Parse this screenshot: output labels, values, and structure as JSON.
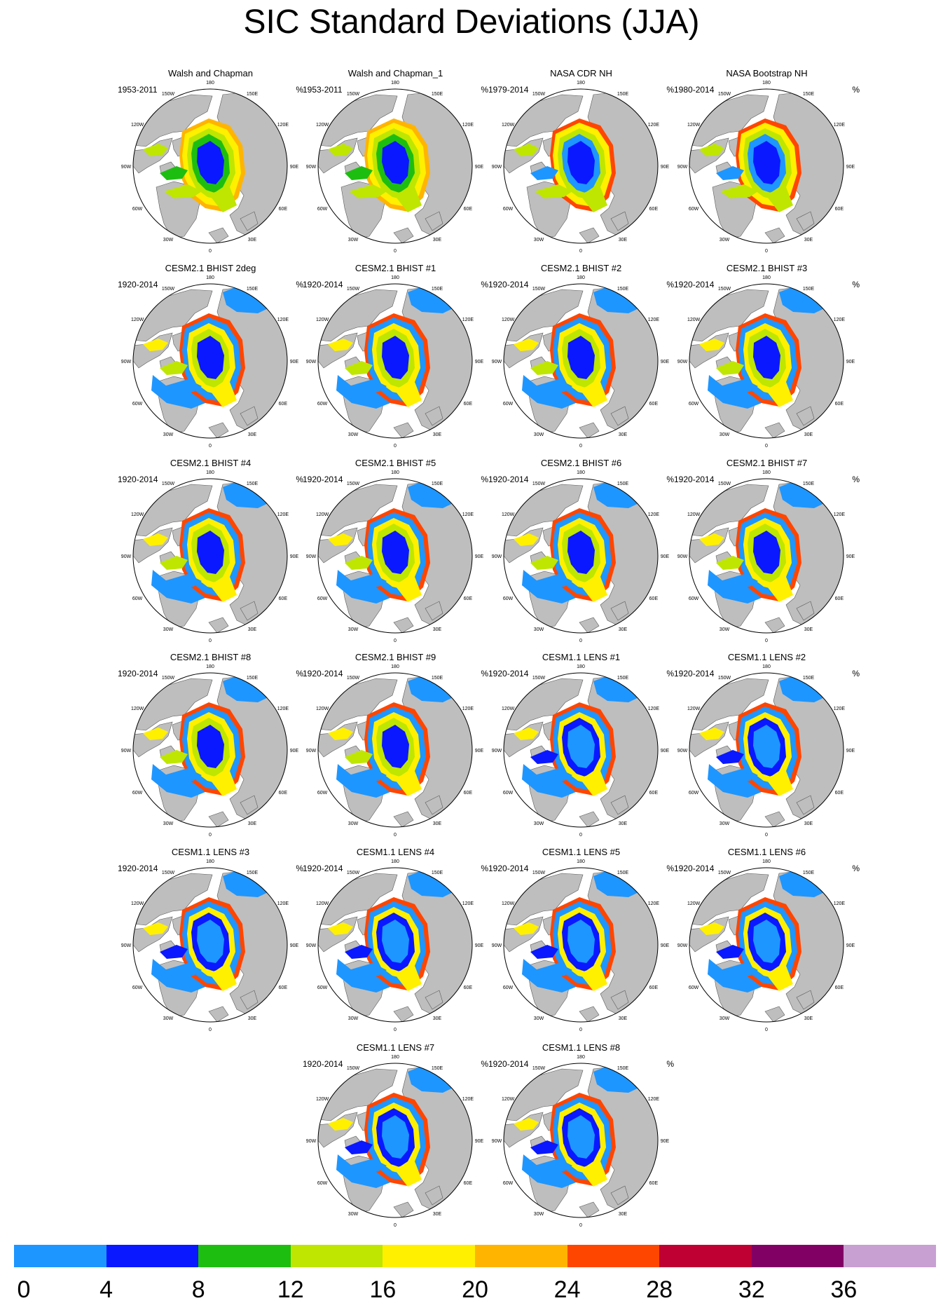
{
  "title": "SIC Standard Deviations (JJA)",
  "unit": "%",
  "lon_labels": [
    "180",
    "150W",
    "150E",
    "120W",
    "120E",
    "90W",
    "90E",
    "60W",
    "60E",
    "30W",
    "30E",
    "0"
  ],
  "panels": [
    {
      "title": "Walsh and Chapman",
      "years": "1953-2011"
    },
    {
      "title": "Walsh and Chapman_1",
      "years": "1953-2011"
    },
    {
      "title": "NASA CDR NH",
      "years": "1979-2014"
    },
    {
      "title": "NASA Bootstrap NH",
      "years": "1980-2014"
    },
    {
      "title": "CESM2.1 BHIST 2deg",
      "years": "1920-2014"
    },
    {
      "title": "CESM2.1 BHIST #1",
      "years": "1920-2014"
    },
    {
      "title": "CESM2.1 BHIST #2",
      "years": "1920-2014"
    },
    {
      "title": "CESM2.1 BHIST #3",
      "years": "1920-2014"
    },
    {
      "title": "CESM2.1 BHIST #4",
      "years": "1920-2014"
    },
    {
      "title": "CESM2.1 BHIST #5",
      "years": "1920-2014"
    },
    {
      "title": "CESM2.1 BHIST #6",
      "years": "1920-2014"
    },
    {
      "title": "CESM2.1 BHIST #7",
      "years": "1920-2014"
    },
    {
      "title": "CESM2.1 BHIST #8",
      "years": "1920-2014"
    },
    {
      "title": "CESM2.1 BHIST #9",
      "years": "1920-2014"
    },
    {
      "title": "CESM1.1 LENS #1",
      "years": "1920-2014"
    },
    {
      "title": "CESM1.1 LENS #2",
      "years": "1920-2014"
    },
    {
      "title": "CESM1.1 LENS #3",
      "years": "1920-2014"
    },
    {
      "title": "CESM1.1 LENS #4",
      "years": "1920-2014"
    },
    {
      "title": "CESM1.1 LENS #5",
      "years": "1920-2014"
    },
    {
      "title": "CESM1.1 LENS #6",
      "years": "1920-2014"
    },
    {
      "title": "CESM1.1 LENS #7",
      "years": "1920-2014"
    },
    {
      "title": "CESM1.1 LENS #8",
      "years": "1920-2014"
    }
  ],
  "colorbar": {
    "labels": [
      "0",
      "4",
      "8",
      "12",
      "16",
      "20",
      "24",
      "28",
      "32",
      "36"
    ],
    "colors": [
      "#1e96ff",
      "#0a18ff",
      "#1ebe10",
      "#bee600",
      "#fff000",
      "#ffb400",
      "#ff4600",
      "#be0032",
      "#800064",
      "#c8a0d2"
    ]
  },
  "colors": {
    "land": "#bebebe",
    "ocean": "#ffffff"
  }
}
